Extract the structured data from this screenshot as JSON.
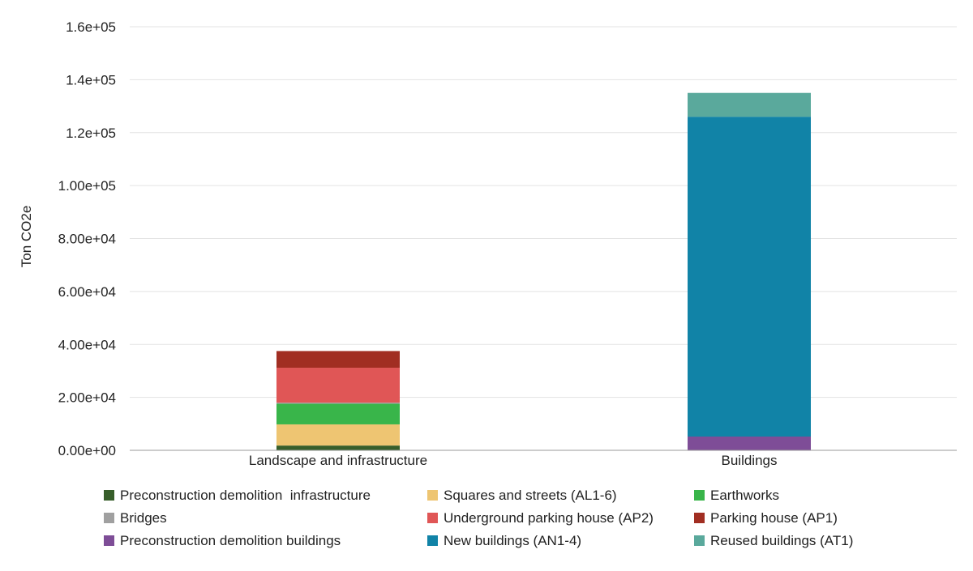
{
  "chart_data": {
    "type": "bar",
    "stacked": true,
    "title": "",
    "xlabel": "",
    "ylabel": "Ton CO2e",
    "ylim": [
      0,
      160000
    ],
    "grid": true,
    "legend_position": "bottom",
    "categories": [
      "Landscape and infrastructure",
      "Buildings"
    ],
    "y_ticks": [
      {
        "value": 0,
        "label": "0.00e+00"
      },
      {
        "value": 20000,
        "label": "2.00e+04"
      },
      {
        "value": 40000,
        "label": "4.00e+04"
      },
      {
        "value": 60000,
        "label": "6.00e+04"
      },
      {
        "value": 80000,
        "label": "8.00e+04"
      },
      {
        "value": 100000,
        "label": "1.00e+05"
      },
      {
        "value": 120000,
        "label": "1.2e+05"
      },
      {
        "value": 140000,
        "label": "1.4e+05"
      },
      {
        "value": 160000,
        "label": "1.6e+05"
      }
    ],
    "series": [
      {
        "name": "Preconstruction demolition  infrastructure",
        "color": "#375E2A",
        "values": [
          1800,
          0
        ]
      },
      {
        "name": "Squares and streets (AL1-6)",
        "color": "#EEC572",
        "values": [
          8000,
          0
        ]
      },
      {
        "name": "Earthworks",
        "color": "#39B54A",
        "values": [
          7800,
          0
        ]
      },
      {
        "name": "Bridges",
        "color": "#A0A0A0",
        "values": [
          400,
          0
        ]
      },
      {
        "name": "Underground parking house (AP2)",
        "color": "#E05656",
        "values": [
          13200,
          0
        ]
      },
      {
        "name": "Parking house (AP1)",
        "color": "#A12E22",
        "values": [
          6300,
          0
        ]
      },
      {
        "name": "Preconstruction demolition buildings",
        "color": "#7E4D97",
        "values": [
          0,
          5200
        ]
      },
      {
        "name": "New buildings (AN1-4)",
        "color": "#1183A7",
        "values": [
          0,
          120800
        ]
      },
      {
        "name": "Reused buildings (AT1)",
        "color": "#5AA99C",
        "values": [
          0,
          9000
        ]
      }
    ],
    "legend_order": [
      "Preconstruction demolition  infrastructure",
      "Squares and streets (AL1-6)",
      "Earthworks",
      "Bridges",
      "Underground parking house (AP2)",
      "Parking house (AP1)",
      "Preconstruction demolition buildings",
      "New buildings (AN1-4)",
      "Reused buildings (AT1)"
    ]
  }
}
